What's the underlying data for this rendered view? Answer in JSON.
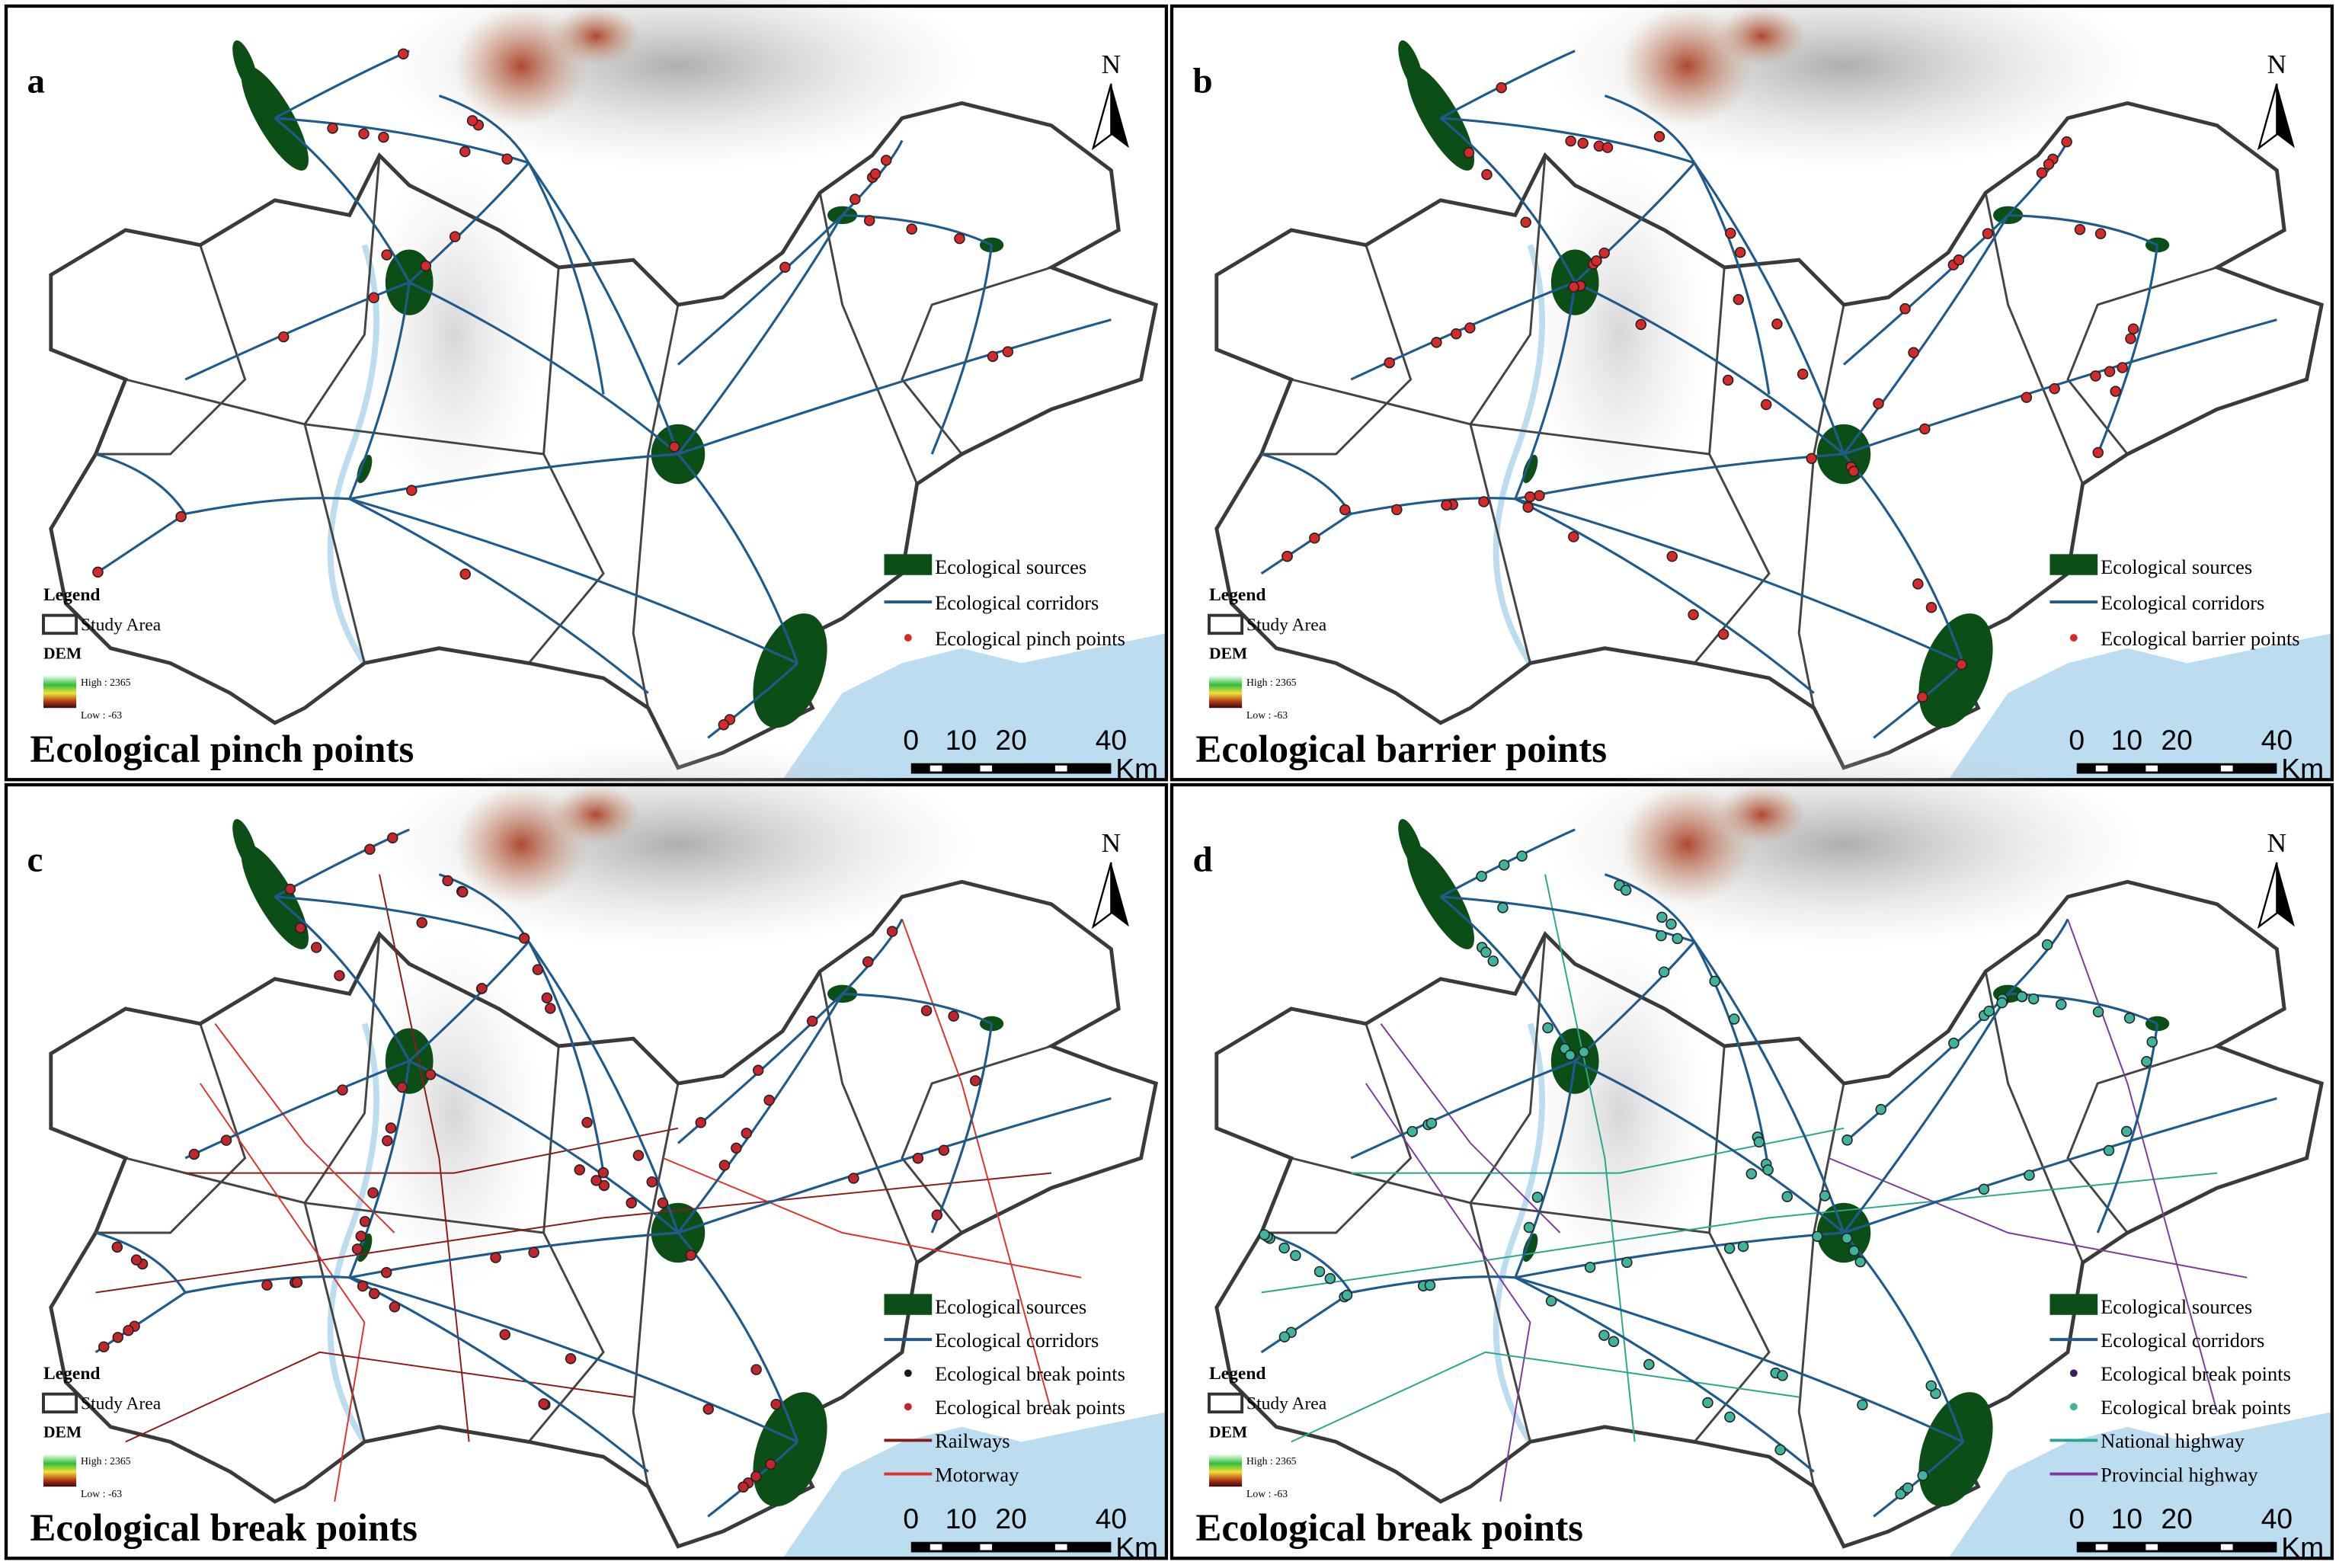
{
  "panels": [
    {
      "letter": "a",
      "title": "Ecological pinch points",
      "items": [
        {
          "label": "Ecological sources",
          "symbol": "rect",
          "color": "#0b4f17"
        },
        {
          "label": "Ecological corridors",
          "symbol": "line",
          "color": "#1f5a8c"
        },
        {
          "label": "Ecological pinch points",
          "symbol": "dot",
          "color": "#d42a2a"
        }
      ]
    },
    {
      "letter": "b",
      "title": "Ecological barrier points",
      "items": [
        {
          "label": "Ecological sources",
          "symbol": "rect",
          "color": "#0b4f17"
        },
        {
          "label": "Ecological corridors",
          "symbol": "line",
          "color": "#1f5a8c"
        },
        {
          "label": "Ecological barrier points",
          "symbol": "dot",
          "color": "#d42a2a"
        }
      ]
    },
    {
      "letter": "c",
      "title": "Ecological break points",
      "items": [
        {
          "label": "Ecological sources",
          "symbol": "rect",
          "color": "#0b4f17"
        },
        {
          "label": "Ecological corridors",
          "symbol": "line",
          "color": "#1f5a8c"
        },
        {
          "label": "Ecological break points",
          "symbol": "dot",
          "color": "#1a1a1a"
        },
        {
          "label": "Ecological break points",
          "symbol": "dot",
          "color": "#c0262b"
        },
        {
          "label": "Railways",
          "symbol": "line",
          "color": "#8b1a1a"
        },
        {
          "label": "Motorway",
          "symbol": "line",
          "color": "#e0302a"
        }
      ]
    },
    {
      "letter": "d",
      "title": "Ecological break points",
      "items": [
        {
          "label": "Ecological sources",
          "symbol": "rect",
          "color": "#0b4f17"
        },
        {
          "label": "Ecological corridors",
          "symbol": "line",
          "color": "#1f5a8c"
        },
        {
          "label": "Ecological break points",
          "symbol": "dot",
          "color": "#3b1f5c"
        },
        {
          "label": "Ecological break points",
          "symbol": "dot",
          "color": "#3fb39b"
        },
        {
          "label": "National highway",
          "symbol": "line",
          "color": "#2aa58f"
        },
        {
          "label": "Provincial highway",
          "symbol": "line",
          "color": "#7b3a9a"
        }
      ]
    }
  ],
  "legend": {
    "title": "Legend",
    "study_area": "Study Area",
    "dem": "DEM",
    "dem_high": "High : 2365",
    "dem_low": "Low : -63"
  },
  "scale": {
    "ticks": [
      0,
      10,
      20,
      40
    ],
    "unit": "Km"
  },
  "north": "N"
}
